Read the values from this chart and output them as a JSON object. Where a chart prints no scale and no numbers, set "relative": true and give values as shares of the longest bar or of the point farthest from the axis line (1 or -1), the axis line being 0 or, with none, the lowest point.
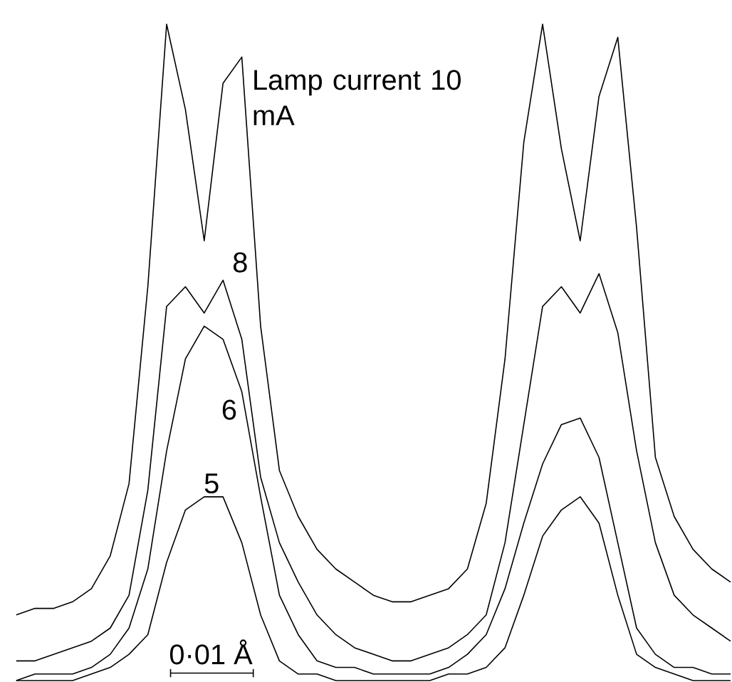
{
  "chart_data": {
    "type": "line",
    "relative": true,
    "categories": [
      null,
      null,
      null,
      null,
      null,
      null,
      null,
      null,
      null,
      null,
      null,
      null,
      null,
      null,
      null,
      null,
      null,
      null,
      null,
      null,
      null,
      null,
      null,
      null,
      null,
      null,
      null,
      null,
      null,
      null,
      null,
      null,
      null,
      null,
      null,
      null,
      null,
      null,
      null
    ],
    "series": [
      {
        "name": "Lamp current 10 mA",
        "color": "#000000",
        "values": [
          0.1,
          0.11,
          0.11,
          0.12,
          0.14,
          0.19,
          0.3,
          0.6,
          1.0,
          0.87,
          0.67,
          0.91,
          0.95,
          0.54,
          0.32,
          0.25,
          0.2,
          0.17,
          0.15,
          0.13,
          0.12,
          0.12,
          0.13,
          0.14,
          0.17,
          0.27,
          0.49,
          0.82,
          1.0,
          0.81,
          0.67,
          0.89,
          0.98,
          0.69,
          0.34,
          0.25,
          0.2,
          0.17,
          0.15
        ]
      },
      {
        "name": "8",
        "color": "#000000",
        "values": [
          0.03,
          0.03,
          0.04,
          0.05,
          0.06,
          0.08,
          0.13,
          0.29,
          0.57,
          0.6,
          0.56,
          0.61,
          0.52,
          0.31,
          0.21,
          0.15,
          0.1,
          0.07,
          0.05,
          0.04,
          0.03,
          0.03,
          0.04,
          0.05,
          0.07,
          0.1,
          0.21,
          0.39,
          0.57,
          0.6,
          0.56,
          0.62,
          0.53,
          0.35,
          0.21,
          0.13,
          0.1,
          0.08,
          0.06
        ]
      },
      {
        "name": "6",
        "color": "#000000",
        "values": [
          0.0,
          0.01,
          0.01,
          0.01,
          0.02,
          0.04,
          0.08,
          0.17,
          0.35,
          0.49,
          0.54,
          0.52,
          0.44,
          0.28,
          0.13,
          0.07,
          0.03,
          0.02,
          0.02,
          0.01,
          0.01,
          0.01,
          0.01,
          0.02,
          0.04,
          0.07,
          0.14,
          0.24,
          0.33,
          0.39,
          0.4,
          0.34,
          0.21,
          0.08,
          0.04,
          0.02,
          0.02,
          0.01,
          0.01
        ]
      },
      {
        "name": "5",
        "color": "#000000",
        "values": [
          0.0,
          0.0,
          0.0,
          0.0,
          0.01,
          0.02,
          0.04,
          0.07,
          0.18,
          0.26,
          0.28,
          0.28,
          0.21,
          0.1,
          0.03,
          0.01,
          0.01,
          0.0,
          0.0,
          0.0,
          0.0,
          0.0,
          0.0,
          0.01,
          0.01,
          0.02,
          0.05,
          0.13,
          0.22,
          0.26,
          0.28,
          0.24,
          0.13,
          0.04,
          0.02,
          0.01,
          0.0,
          0.0,
          0.0
        ]
      }
    ],
    "annotations": [
      "0·01 Å"
    ]
  }
}
